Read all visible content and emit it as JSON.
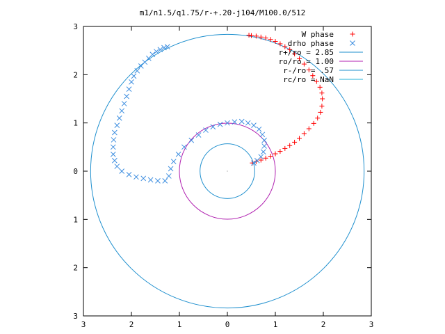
{
  "chart_data": {
    "type": "scatter",
    "title": "m1/n1.5/q1.75/r-+.20-j104/M100.0/512",
    "xlim": [
      -3,
      3
    ],
    "ylim": [
      -3,
      3
    ],
    "x_ticks": [
      -3,
      -2,
      -1,
      0,
      1,
      2,
      3
    ],
    "y_ticks": [
      -3,
      -2,
      -1,
      0,
      1,
      2,
      3
    ],
    "x_tick_labels": [
      "3",
      "2",
      "1",
      "0",
      "1",
      "2",
      "3"
    ],
    "y_tick_labels": [
      "3",
      "2",
      "1",
      "0",
      "1",
      "2",
      "3"
    ],
    "grid": false,
    "legend_position": "top-right",
    "legend": [
      {
        "label": "W phase",
        "marker": "+",
        "color": "#ff0000"
      },
      {
        "label": "drho phase",
        "marker": "x",
        "color": "#3f8fe0"
      },
      {
        "label": "r+/ro = 2.85",
        "marker": "line",
        "color": "#1e8fce"
      },
      {
        "label": "ro/ro = 1.00",
        "marker": "line",
        "color": "#b020b0"
      },
      {
        "label": "r-/ro = .57",
        "marker": "line",
        "color": "#1e8fce"
      },
      {
        "label": "rc/ro = NaN",
        "marker": "line",
        "color": "#20b0d8"
      }
    ],
    "circles": [
      {
        "name": "r+/ro",
        "radius": 2.85,
        "color": "#1e8fce"
      },
      {
        "name": "ro/ro",
        "radius": 1.0,
        "color": "#b020b0"
      },
      {
        "name": "r-/ro",
        "radius": 0.57,
        "color": "#1e8fce"
      }
    ],
    "series": [
      {
        "name": "W phase",
        "marker": "+",
        "color": "#ff0000",
        "points": [
          [
            0.52,
            0.17
          ],
          [
            0.6,
            0.2
          ],
          [
            0.7,
            0.23
          ],
          [
            0.8,
            0.27
          ],
          [
            0.9,
            0.31
          ],
          [
            1.0,
            0.36
          ],
          [
            1.1,
            0.41
          ],
          [
            1.2,
            0.47
          ],
          [
            1.3,
            0.53
          ],
          [
            1.4,
            0.6
          ],
          [
            1.5,
            0.68
          ],
          [
            1.6,
            0.78
          ],
          [
            1.7,
            0.88
          ],
          [
            1.8,
            0.99
          ],
          [
            1.88,
            1.1
          ],
          [
            1.94,
            1.22
          ],
          [
            1.97,
            1.35
          ],
          [
            1.98,
            1.5
          ],
          [
            1.97,
            1.62
          ],
          [
            1.93,
            1.74
          ],
          [
            1.86,
            1.86
          ],
          [
            1.78,
            1.98
          ],
          [
            1.7,
            2.1
          ],
          [
            1.6,
            2.22
          ],
          [
            1.5,
            2.33
          ],
          [
            1.4,
            2.43
          ],
          [
            1.3,
            2.52
          ],
          [
            1.2,
            2.58
          ],
          [
            1.1,
            2.64
          ],
          [
            1.0,
            2.69
          ],
          [
            0.9,
            2.73
          ],
          [
            0.8,
            2.76
          ],
          [
            0.7,
            2.78
          ],
          [
            0.6,
            2.8
          ],
          [
            0.5,
            2.81
          ],
          [
            0.45,
            2.82
          ]
        ]
      },
      {
        "name": "drho phase",
        "marker": "x",
        "color": "#3f8fe0",
        "points": [
          [
            0.55,
            0.17
          ],
          [
            0.62,
            0.22
          ],
          [
            0.7,
            0.3
          ],
          [
            0.75,
            0.4
          ],
          [
            0.77,
            0.52
          ],
          [
            0.77,
            0.64
          ],
          [
            0.73,
            0.76
          ],
          [
            0.66,
            0.87
          ],
          [
            0.55,
            0.95
          ],
          [
            0.43,
            1.0
          ],
          [
            0.3,
            1.03
          ],
          [
            0.15,
            1.02
          ],
          [
            0.0,
            1.0
          ],
          [
            -0.15,
            0.97
          ],
          [
            -0.3,
            0.92
          ],
          [
            -0.45,
            0.85
          ],
          [
            -0.6,
            0.75
          ],
          [
            -0.75,
            0.64
          ],
          [
            -0.9,
            0.5
          ],
          [
            -1.02,
            0.35
          ],
          [
            -1.12,
            0.2
          ],
          [
            -1.18,
            0.05
          ],
          [
            -1.22,
            -0.1
          ],
          [
            -1.3,
            -0.2
          ],
          [
            -1.45,
            -0.2
          ],
          [
            -1.6,
            -0.18
          ],
          [
            -1.75,
            -0.15
          ],
          [
            -1.9,
            -0.12
          ],
          [
            -2.05,
            -0.07
          ],
          [
            -2.2,
            0.0
          ],
          [
            -2.3,
            0.1
          ],
          [
            -2.35,
            0.22
          ],
          [
            -2.38,
            0.35
          ],
          [
            -2.38,
            0.5
          ],
          [
            -2.37,
            0.65
          ],
          [
            -2.35,
            0.8
          ],
          [
            -2.3,
            0.95
          ],
          [
            -2.25,
            1.1
          ],
          [
            -2.2,
            1.25
          ],
          [
            -2.15,
            1.4
          ],
          [
            -2.1,
            1.55
          ],
          [
            -2.05,
            1.7
          ],
          [
            -2.0,
            1.85
          ],
          [
            -1.95,
            1.97
          ],
          [
            -1.88,
            2.08
          ],
          [
            -1.8,
            2.18
          ],
          [
            -1.72,
            2.26
          ],
          [
            -1.64,
            2.34
          ],
          [
            -1.56,
            2.42
          ],
          [
            -1.48,
            2.48
          ],
          [
            -1.4,
            2.52
          ],
          [
            -1.32,
            2.56
          ],
          [
            -1.25,
            2.58
          ]
        ]
      }
    ]
  }
}
